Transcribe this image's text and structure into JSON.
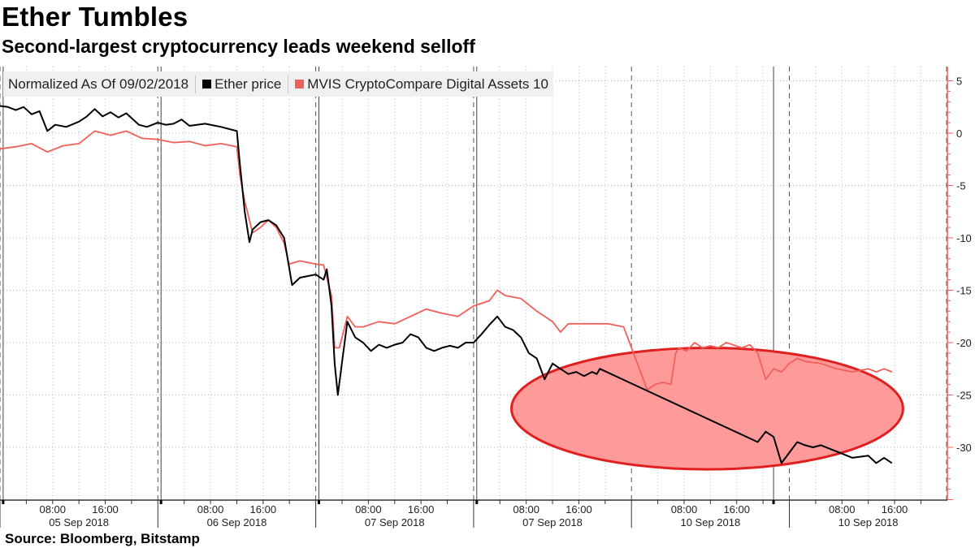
{
  "header": {
    "title": "Ether Tumbles",
    "subtitle": "Second-largest cryptocurrency leads weekend selloff",
    "source": "Source: Bloomberg, Bitstamp"
  },
  "legend": {
    "normalized_note": "Normalized As Of 09/02/2018",
    "ether_label": "Ether price",
    "mvis_label": "MVIS CryptoCompare Digital Assets 10"
  },
  "colors": {
    "ether": "#000000",
    "mvis": "#f0605a",
    "ellipse_fill": "#ff9a9a",
    "ellipse_stroke": "#e02020",
    "right_axis": "#f0605a"
  },
  "chart_data": {
    "type": "line",
    "y_axis_side": "right",
    "ylim": [
      -35,
      6
    ],
    "yticks": [
      5,
      0,
      -5,
      -10,
      -15,
      -20,
      -25,
      -30
    ],
    "sessions": [
      {
        "date": "05 Sep 2018",
        "times": [
          "08:00",
          "16:00"
        ]
      },
      {
        "date": "06 Sep 2018",
        "times": [
          "08:00",
          "16:00"
        ]
      },
      {
        "date": "07 Sep 2018",
        "times": [
          "08:00",
          "16:00"
        ]
      },
      {
        "date": "07 Sep 2018",
        "times": [
          "08:00",
          "16:00"
        ]
      },
      {
        "date": "10 Sep 2018",
        "times": [
          "08:00",
          "16:00"
        ]
      },
      {
        "date": "10 Sep 2018",
        "times": [
          "08:00",
          "16:00"
        ]
      }
    ],
    "grid": true,
    "series": [
      {
        "name": "Ether price",
        "points": [
          [
            0,
            2.6
          ],
          [
            0.05,
            2.5
          ],
          [
            0.1,
            2.2
          ],
          [
            0.15,
            2.5
          ],
          [
            0.2,
            1.8
          ],
          [
            0.25,
            2.1
          ],
          [
            0.3,
            0.2
          ],
          [
            0.35,
            0.8
          ],
          [
            0.42,
            0.6
          ],
          [
            0.5,
            1.1
          ],
          [
            0.55,
            1.6
          ],
          [
            0.6,
            2.3
          ],
          [
            0.65,
            1.6
          ],
          [
            0.7,
            2.0
          ],
          [
            0.75,
            1.5
          ],
          [
            0.8,
            1.9
          ],
          [
            0.88,
            0.8
          ],
          [
            0.93,
            0.6
          ],
          [
            1.0,
            1.0
          ],
          [
            1.05,
            0.8
          ],
          [
            1.1,
            0.9
          ],
          [
            1.15,
            1.3
          ],
          [
            1.2,
            0.7
          ],
          [
            1.3,
            0.9
          ],
          [
            1.4,
            0.6
          ],
          [
            1.5,
            0.2
          ],
          [
            1.52,
            -3
          ],
          [
            1.55,
            -7.5
          ],
          [
            1.58,
            -10.4
          ],
          [
            1.6,
            -9.2
          ],
          [
            1.65,
            -8.5
          ],
          [
            1.7,
            -8.3
          ],
          [
            1.75,
            -8.8
          ],
          [
            1.8,
            -10.0
          ],
          [
            1.85,
            -14.5
          ],
          [
            1.9,
            -13.8
          ],
          [
            2.0,
            -13.5
          ],
          [
            2.05,
            -14.0
          ],
          [
            2.07,
            -13.0
          ],
          [
            2.1,
            -16.5
          ],
          [
            2.12,
            -22
          ],
          [
            2.14,
            -25.0
          ],
          [
            2.17,
            -21.5
          ],
          [
            2.2,
            -18.0
          ],
          [
            2.25,
            -19.5
          ],
          [
            2.3,
            -20.0
          ],
          [
            2.35,
            -20.8
          ],
          [
            2.4,
            -20.2
          ],
          [
            2.45,
            -20.5
          ],
          [
            2.5,
            -20.2
          ],
          [
            2.55,
            -20.0
          ],
          [
            2.6,
            -19.2
          ],
          [
            2.65,
            -19.5
          ],
          [
            2.7,
            -20.5
          ],
          [
            2.75,
            -20.8
          ],
          [
            2.8,
            -20.5
          ],
          [
            2.85,
            -20.3
          ],
          [
            2.9,
            -20.5
          ],
          [
            2.95,
            -20.0
          ],
          [
            3.0,
            -20.0
          ],
          [
            3.05,
            -19.2
          ],
          [
            3.1,
            -18.3
          ],
          [
            3.15,
            -17.5
          ],
          [
            3.2,
            -18.5
          ],
          [
            3.25,
            -18.8
          ],
          [
            3.3,
            -19.5
          ],
          [
            3.35,
            -21.0
          ],
          [
            3.4,
            -21.5
          ],
          [
            3.45,
            -23.5
          ],
          [
            3.5,
            -22.0
          ],
          [
            3.55,
            -22.5
          ],
          [
            3.6,
            -23.0
          ],
          [
            3.65,
            -22.8
          ],
          [
            3.7,
            -23.2
          ],
          [
            3.75,
            -22.8
          ],
          [
            3.78,
            -23.0
          ],
          [
            3.8,
            -22.5
          ],
          [
            4.8,
            -29.5
          ],
          [
            4.85,
            -28.5
          ],
          [
            4.9,
            -29.0
          ],
          [
            4.95,
            -31.5
          ],
          [
            5.0,
            -30.5
          ],
          [
            5.05,
            -29.5
          ],
          [
            5.1,
            -29.8
          ],
          [
            5.15,
            -30.0
          ],
          [
            5.2,
            -29.8
          ],
          [
            5.3,
            -30.4
          ],
          [
            5.4,
            -31.0
          ],
          [
            5.5,
            -30.8
          ],
          [
            5.55,
            -31.5
          ],
          [
            5.6,
            -31.0
          ],
          [
            5.65,
            -31.5
          ]
        ]
      },
      {
        "name": "MVIS CryptoCompare Digital Assets 10",
        "points": [
          [
            0,
            -1.5
          ],
          [
            0.1,
            -1.3
          ],
          [
            0.2,
            -1.0
          ],
          [
            0.3,
            -1.8
          ],
          [
            0.4,
            -1.2
          ],
          [
            0.5,
            -1.0
          ],
          [
            0.6,
            0.2
          ],
          [
            0.7,
            -0.2
          ],
          [
            0.8,
            0.2
          ],
          [
            0.9,
            -0.5
          ],
          [
            1.0,
            -0.6
          ],
          [
            1.1,
            -0.9
          ],
          [
            1.2,
            -0.8
          ],
          [
            1.3,
            -1.2
          ],
          [
            1.4,
            -1.0
          ],
          [
            1.5,
            -1.3
          ],
          [
            1.52,
            -4
          ],
          [
            1.55,
            -6.5
          ],
          [
            1.6,
            -9.5
          ],
          [
            1.65,
            -9.0
          ],
          [
            1.7,
            -8.3
          ],
          [
            1.75,
            -9.0
          ],
          [
            1.8,
            -10.5
          ],
          [
            1.83,
            -12.5
          ],
          [
            1.9,
            -12.2
          ],
          [
            2.0,
            -12.5
          ],
          [
            2.05,
            -12.6
          ],
          [
            2.1,
            -15.5
          ],
          [
            2.12,
            -20.5
          ],
          [
            2.15,
            -20.5
          ],
          [
            2.2,
            -17.5
          ],
          [
            2.25,
            -18.5
          ],
          [
            2.3,
            -18.5
          ],
          [
            2.4,
            -18.0
          ],
          [
            2.5,
            -18.2
          ],
          [
            2.6,
            -17.5
          ],
          [
            2.7,
            -16.8
          ],
          [
            2.8,
            -17.2
          ],
          [
            2.9,
            -17.5
          ],
          [
            3.0,
            -16.5
          ],
          [
            3.1,
            -16.0
          ],
          [
            3.15,
            -15.0
          ],
          [
            3.2,
            -15.5
          ],
          [
            3.3,
            -15.8
          ],
          [
            3.4,
            -17.0
          ],
          [
            3.5,
            -18.0
          ],
          [
            3.55,
            -19.0
          ],
          [
            3.6,
            -18.2
          ],
          [
            3.7,
            -18.2
          ],
          [
            3.8,
            -18.2
          ],
          [
            3.85,
            -18.2
          ],
          [
            3.95,
            -18.5
          ],
          [
            4.1,
            -24.5
          ],
          [
            4.15,
            -24.0
          ],
          [
            4.2,
            -23.8
          ],
          [
            4.25,
            -24.0
          ],
          [
            4.28,
            -21.0
          ],
          [
            4.3,
            -20.5
          ],
          [
            4.35,
            -20.8
          ],
          [
            4.4,
            -20.0
          ],
          [
            4.45,
            -20.5
          ],
          [
            4.5,
            -20.3
          ],
          [
            4.55,
            -20.5
          ],
          [
            4.6,
            -20.0
          ],
          [
            4.7,
            -20.5
          ],
          [
            4.75,
            -20.2
          ],
          [
            4.8,
            -21.0
          ],
          [
            4.85,
            -23.5
          ],
          [
            4.9,
            -22.5
          ],
          [
            4.95,
            -22.8
          ],
          [
            5.0,
            -22.0
          ],
          [
            5.05,
            -21.5
          ],
          [
            5.1,
            -21.8
          ],
          [
            5.2,
            -22.0
          ],
          [
            5.3,
            -22.5
          ],
          [
            5.4,
            -22.8
          ],
          [
            5.5,
            -22.5
          ],
          [
            5.55,
            -22.8
          ],
          [
            5.6,
            -22.5
          ],
          [
            5.65,
            -22.8
          ]
        ]
      }
    ],
    "annotations": [
      {
        "type": "ellipse",
        "cx_x": 4.48,
        "cy_y": -26.3,
        "rx_x": 1.24,
        "ry_y": 5.8
      }
    ]
  }
}
